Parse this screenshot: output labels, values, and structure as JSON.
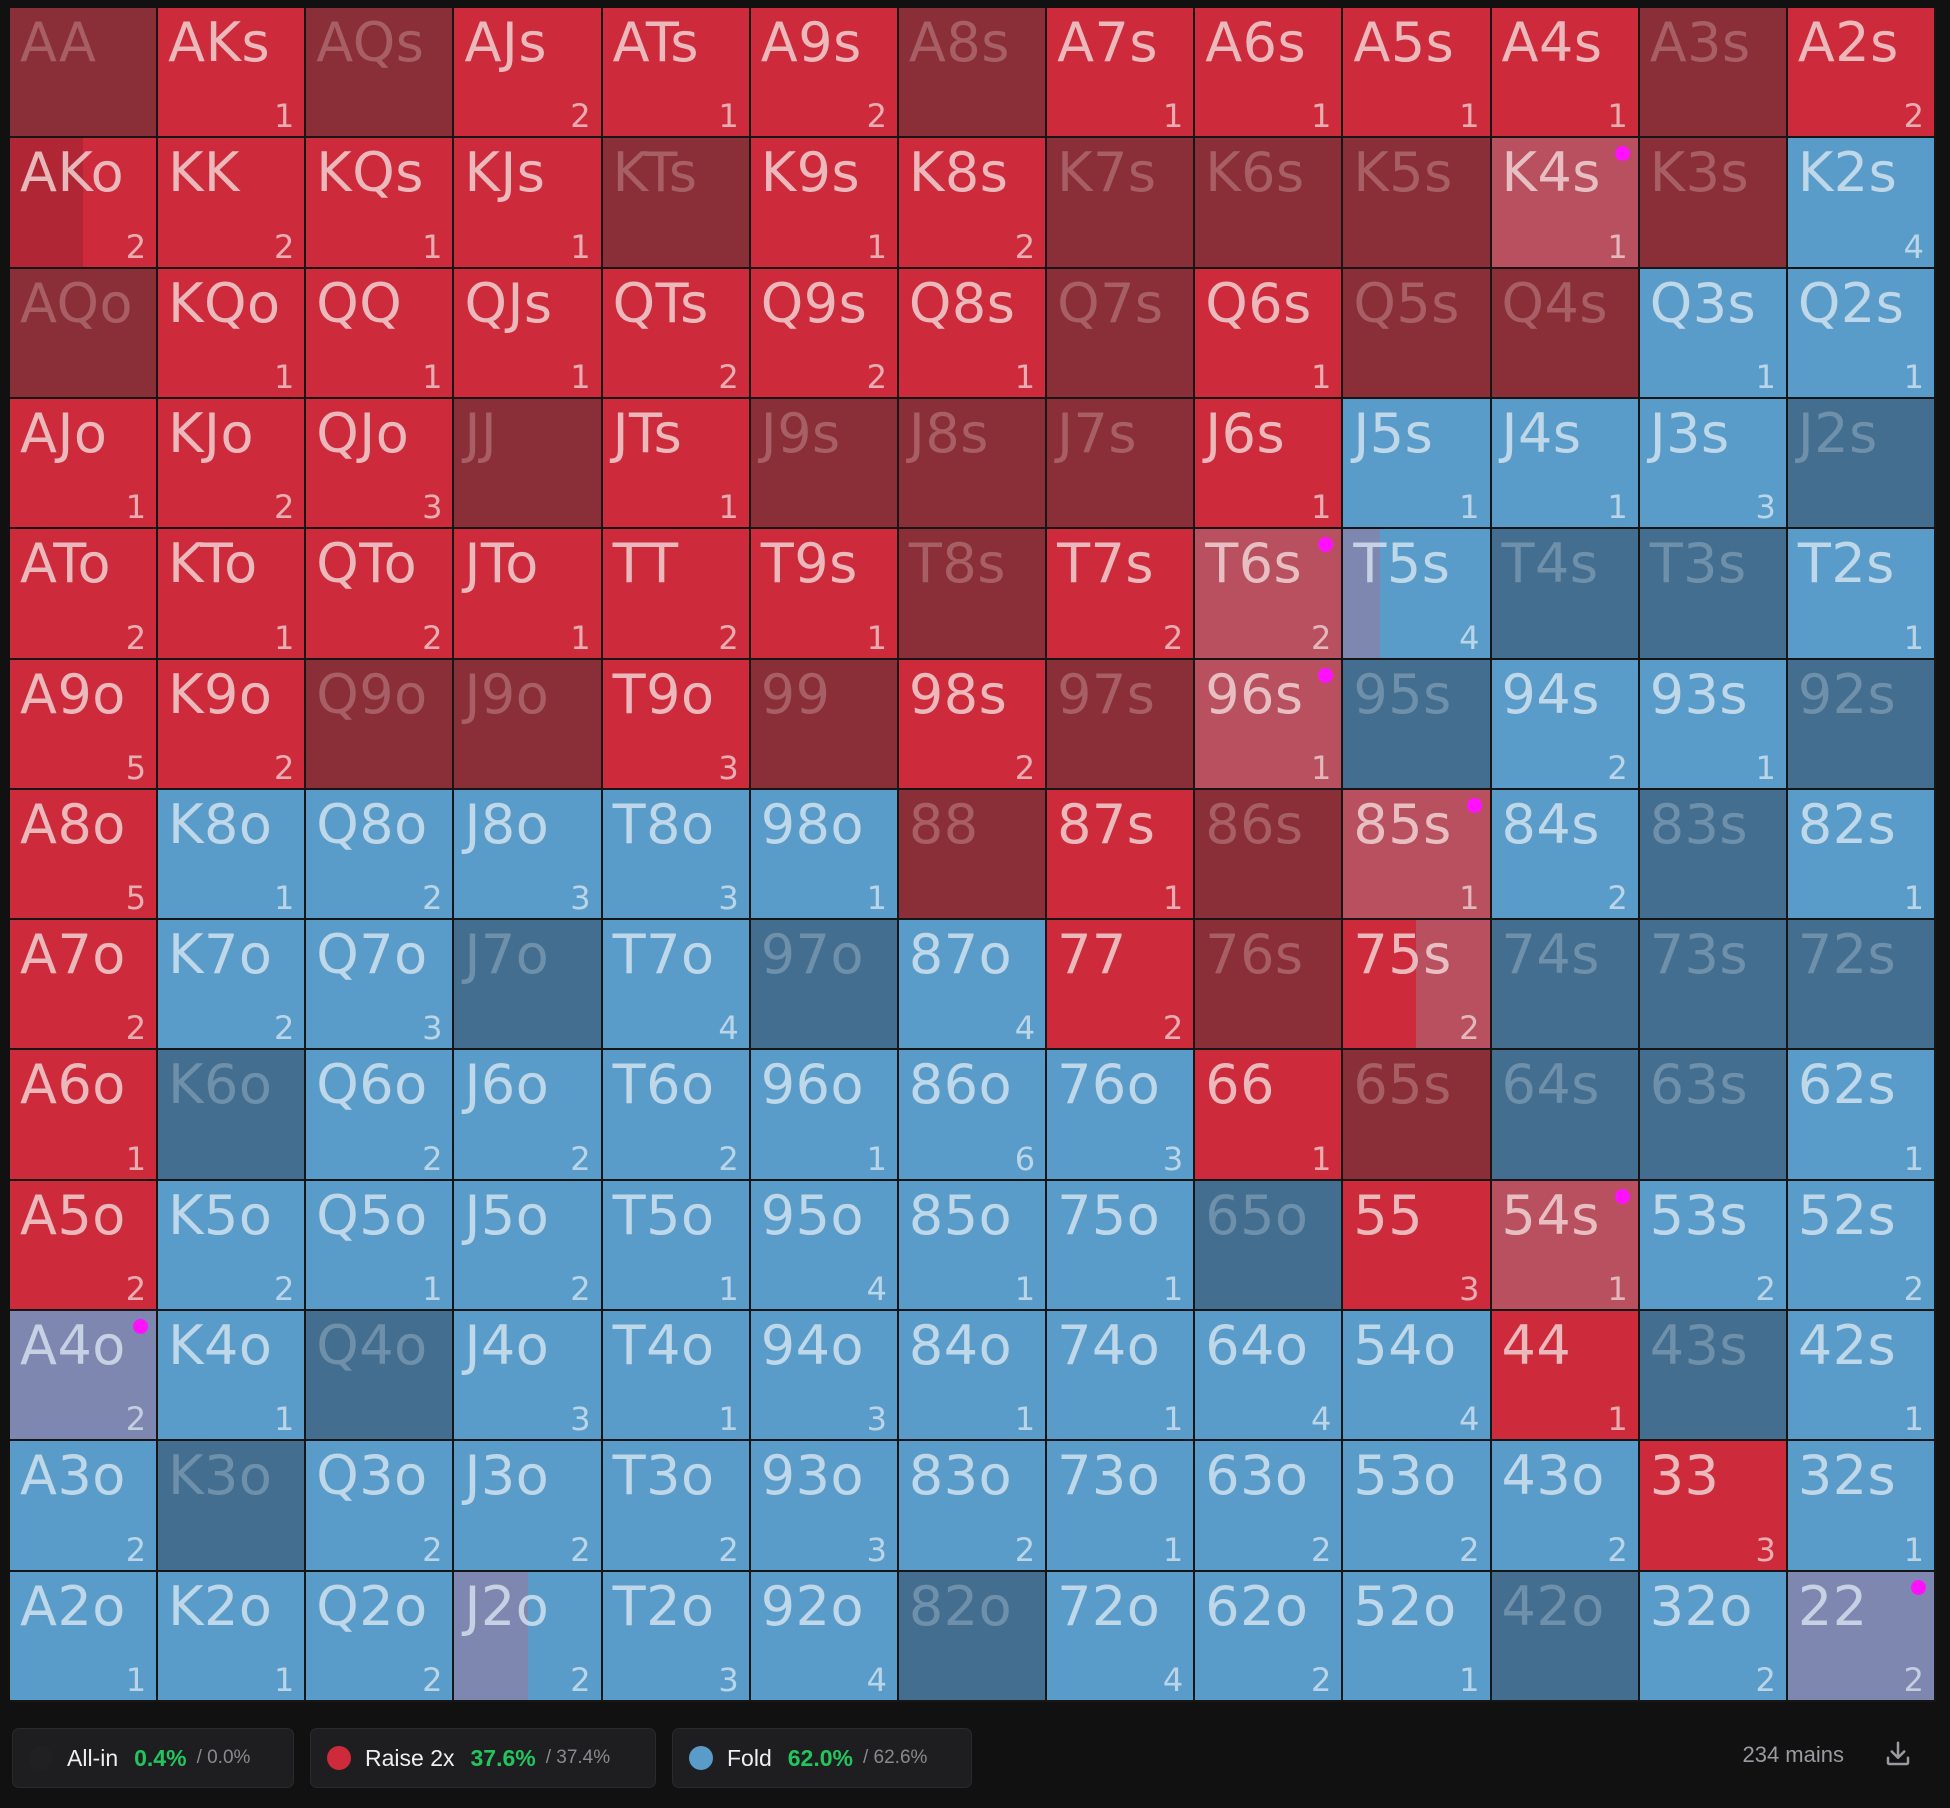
{
  "colors": {
    "raise": "#cd2b3b",
    "raise_dim": "#a8343d",
    "fold": "#5a9cc9",
    "fold_dim": "#4f84ac",
    "mixed_tint": "#b9505f",
    "mixed_tint_blue": "#7d87b0",
    "allin": "#202022",
    "marker": "#ff10ff",
    "percent_green": "#22c55e"
  },
  "grid": {
    "rows": [
      [
        {
          "h": "AA",
          "n": "",
          "a": "raise",
          "d": true
        },
        {
          "h": "AKs",
          "n": "1",
          "a": "raise"
        },
        {
          "h": "AQs",
          "n": "",
          "a": "raise",
          "d": true
        },
        {
          "h": "AJs",
          "n": "2",
          "a": "raise"
        },
        {
          "h": "ATs",
          "n": "1",
          "a": "raise"
        },
        {
          "h": "A9s",
          "n": "2",
          "a": "raise"
        },
        {
          "h": "A8s",
          "n": "",
          "a": "raise",
          "d": true
        },
        {
          "h": "A7s",
          "n": "1",
          "a": "raise"
        },
        {
          "h": "A6s",
          "n": "1",
          "a": "raise"
        },
        {
          "h": "A5s",
          "n": "1",
          "a": "raise"
        },
        {
          "h": "A4s",
          "n": "1",
          "a": "raise"
        },
        {
          "h": "A3s",
          "n": "",
          "a": "raise",
          "d": true
        },
        {
          "h": "A2s",
          "n": "2",
          "a": "raise"
        }
      ],
      [
        {
          "h": "AKo",
          "n": "2",
          "a": "raise",
          "mix": 0.5
        },
        {
          "h": "KK",
          "n": "2",
          "a": "raise"
        },
        {
          "h": "KQs",
          "n": "1",
          "a": "raise"
        },
        {
          "h": "KJs",
          "n": "1",
          "a": "raise"
        },
        {
          "h": "KTs",
          "n": "",
          "a": "raise",
          "d": true
        },
        {
          "h": "K9s",
          "n": "1",
          "a": "raise"
        },
        {
          "h": "K8s",
          "n": "2",
          "a": "raise"
        },
        {
          "h": "K7s",
          "n": "",
          "a": "raise",
          "d": true
        },
        {
          "h": "K6s",
          "n": "",
          "a": "raise",
          "d": true
        },
        {
          "h": "K5s",
          "n": "",
          "a": "raise",
          "d": true
        },
        {
          "h": "K4s",
          "n": "1",
          "a": "mixed",
          "m": true
        },
        {
          "h": "K3s",
          "n": "",
          "a": "raise",
          "d": true
        },
        {
          "h": "K2s",
          "n": "4",
          "a": "fold"
        }
      ],
      [
        {
          "h": "AQo",
          "n": "",
          "a": "raise",
          "d": true
        },
        {
          "h": "KQo",
          "n": "1",
          "a": "raise"
        },
        {
          "h": "QQ",
          "n": "1",
          "a": "raise"
        },
        {
          "h": "QJs",
          "n": "1",
          "a": "raise"
        },
        {
          "h": "QTs",
          "n": "2",
          "a": "raise"
        },
        {
          "h": "Q9s",
          "n": "2",
          "a": "raise"
        },
        {
          "h": "Q8s",
          "n": "1",
          "a": "raise"
        },
        {
          "h": "Q7s",
          "n": "",
          "a": "raise",
          "d": true
        },
        {
          "h": "Q6s",
          "n": "1",
          "a": "raise"
        },
        {
          "h": "Q5s",
          "n": "",
          "a": "raise",
          "d": true
        },
        {
          "h": "Q4s",
          "n": "",
          "a": "raise",
          "d": true
        },
        {
          "h": "Q3s",
          "n": "1",
          "a": "fold"
        },
        {
          "h": "Q2s",
          "n": "1",
          "a": "fold"
        }
      ],
      [
        {
          "h": "AJo",
          "n": "1",
          "a": "raise"
        },
        {
          "h": "KJo",
          "n": "2",
          "a": "raise"
        },
        {
          "h": "QJo",
          "n": "3",
          "a": "raise"
        },
        {
          "h": "JJ",
          "n": "",
          "a": "raise",
          "d": true
        },
        {
          "h": "JTs",
          "n": "1",
          "a": "raise"
        },
        {
          "h": "J9s",
          "n": "",
          "a": "raise",
          "d": true
        },
        {
          "h": "J8s",
          "n": "",
          "a": "raise",
          "d": true
        },
        {
          "h": "J7s",
          "n": "",
          "a": "raise",
          "d": true
        },
        {
          "h": "J6s",
          "n": "1",
          "a": "raise"
        },
        {
          "h": "J5s",
          "n": "1",
          "a": "fold"
        },
        {
          "h": "J4s",
          "n": "1",
          "a": "fold"
        },
        {
          "h": "J3s",
          "n": "3",
          "a": "fold"
        },
        {
          "h": "J2s",
          "n": "",
          "a": "fold",
          "d": true
        }
      ],
      [
        {
          "h": "ATo",
          "n": "2",
          "a": "raise"
        },
        {
          "h": "KTo",
          "n": "1",
          "a": "raise"
        },
        {
          "h": "QTo",
          "n": "2",
          "a": "raise"
        },
        {
          "h": "JTo",
          "n": "1",
          "a": "raise"
        },
        {
          "h": "TT",
          "n": "2",
          "a": "raise"
        },
        {
          "h": "T9s",
          "n": "1",
          "a": "raise"
        },
        {
          "h": "T8s",
          "n": "",
          "a": "raise",
          "d": true
        },
        {
          "h": "T7s",
          "n": "2",
          "a": "raise"
        },
        {
          "h": "T6s",
          "n": "2",
          "a": "mixed",
          "m": true
        },
        {
          "h": "T5s",
          "n": "4",
          "a": "fold",
          "mixb": 0.25
        },
        {
          "h": "T4s",
          "n": "",
          "a": "fold",
          "d": true
        },
        {
          "h": "T3s",
          "n": "",
          "a": "fold",
          "d": true
        },
        {
          "h": "T2s",
          "n": "1",
          "a": "fold"
        }
      ],
      [
        {
          "h": "A9o",
          "n": "5",
          "a": "raise"
        },
        {
          "h": "K9o",
          "n": "2",
          "a": "raise"
        },
        {
          "h": "Q9o",
          "n": "",
          "a": "raise",
          "d": true
        },
        {
          "h": "J9o",
          "n": "",
          "a": "raise",
          "d": true
        },
        {
          "h": "T9o",
          "n": "3",
          "a": "raise"
        },
        {
          "h": "99",
          "n": "",
          "a": "raise",
          "d": true
        },
        {
          "h": "98s",
          "n": "2",
          "a": "raise"
        },
        {
          "h": "97s",
          "n": "",
          "a": "raise",
          "d": true
        },
        {
          "h": "96s",
          "n": "1",
          "a": "mixed",
          "m": true
        },
        {
          "h": "95s",
          "n": "",
          "a": "fold",
          "d": true
        },
        {
          "h": "94s",
          "n": "2",
          "a": "fold"
        },
        {
          "h": "93s",
          "n": "1",
          "a": "fold"
        },
        {
          "h": "92s",
          "n": "",
          "a": "fold",
          "d": true
        }
      ],
      [
        {
          "h": "A8o",
          "n": "5",
          "a": "raise"
        },
        {
          "h": "K8o",
          "n": "1",
          "a": "fold"
        },
        {
          "h": "Q8o",
          "n": "2",
          "a": "fold"
        },
        {
          "h": "J8o",
          "n": "3",
          "a": "fold"
        },
        {
          "h": "T8o",
          "n": "3",
          "a": "fold"
        },
        {
          "h": "98o",
          "n": "1",
          "a": "fold"
        },
        {
          "h": "88",
          "n": "",
          "a": "raise",
          "d": true
        },
        {
          "h": "87s",
          "n": "1",
          "a": "raise"
        },
        {
          "h": "86s",
          "n": "",
          "a": "raise",
          "d": true
        },
        {
          "h": "85s",
          "n": "1",
          "a": "mixed",
          "m": true
        },
        {
          "h": "84s",
          "n": "2",
          "a": "fold"
        },
        {
          "h": "83s",
          "n": "",
          "a": "fold",
          "d": true
        },
        {
          "h": "82s",
          "n": "1",
          "a": "fold"
        }
      ],
      [
        {
          "h": "A7o",
          "n": "2",
          "a": "raise"
        },
        {
          "h": "K7o",
          "n": "2",
          "a": "fold"
        },
        {
          "h": "Q7o",
          "n": "3",
          "a": "fold"
        },
        {
          "h": "J7o",
          "n": "",
          "a": "fold",
          "d": true
        },
        {
          "h": "T7o",
          "n": "4",
          "a": "fold"
        },
        {
          "h": "97o",
          "n": "",
          "a": "fold",
          "d": true
        },
        {
          "h": "87o",
          "n": "4",
          "a": "fold"
        },
        {
          "h": "77",
          "n": "2",
          "a": "raise"
        },
        {
          "h": "76s",
          "n": "",
          "a": "raise",
          "d": true
        },
        {
          "h": "75s",
          "n": "2",
          "a": "mixed",
          "mixr": 0.5
        },
        {
          "h": "74s",
          "n": "",
          "a": "fold",
          "d": true
        },
        {
          "h": "73s",
          "n": "",
          "a": "fold",
          "d": true
        },
        {
          "h": "72s",
          "n": "",
          "a": "fold",
          "d": true
        }
      ],
      [
        {
          "h": "A6o",
          "n": "1",
          "a": "raise"
        },
        {
          "h": "K6o",
          "n": "",
          "a": "fold",
          "d": true
        },
        {
          "h": "Q6o",
          "n": "2",
          "a": "fold"
        },
        {
          "h": "J6o",
          "n": "2",
          "a": "fold"
        },
        {
          "h": "T6o",
          "n": "2",
          "a": "fold"
        },
        {
          "h": "96o",
          "n": "1",
          "a": "fold"
        },
        {
          "h": "86o",
          "n": "6",
          "a": "fold"
        },
        {
          "h": "76o",
          "n": "3",
          "a": "fold"
        },
        {
          "h": "66",
          "n": "1",
          "a": "raise"
        },
        {
          "h": "65s",
          "n": "",
          "a": "raise",
          "d": true
        },
        {
          "h": "64s",
          "n": "",
          "a": "fold",
          "d": true
        },
        {
          "h": "63s",
          "n": "",
          "a": "fold",
          "d": true
        },
        {
          "h": "62s",
          "n": "1",
          "a": "fold"
        }
      ],
      [
        {
          "h": "A5o",
          "n": "2",
          "a": "raise"
        },
        {
          "h": "K5o",
          "n": "2",
          "a": "fold"
        },
        {
          "h": "Q5o",
          "n": "1",
          "a": "fold"
        },
        {
          "h": "J5o",
          "n": "2",
          "a": "fold"
        },
        {
          "h": "T5o",
          "n": "1",
          "a": "fold"
        },
        {
          "h": "95o",
          "n": "4",
          "a": "fold"
        },
        {
          "h": "85o",
          "n": "1",
          "a": "fold"
        },
        {
          "h": "75o",
          "n": "1",
          "a": "fold"
        },
        {
          "h": "65o",
          "n": "",
          "a": "fold",
          "d": true
        },
        {
          "h": "55",
          "n": "3",
          "a": "raise"
        },
        {
          "h": "54s",
          "n": "1",
          "a": "mixed",
          "m": true
        },
        {
          "h": "53s",
          "n": "2",
          "a": "fold"
        },
        {
          "h": "52s",
          "n": "2",
          "a": "fold"
        }
      ],
      [
        {
          "h": "A4o",
          "n": "2",
          "a": "mixedblue",
          "m": true
        },
        {
          "h": "K4o",
          "n": "1",
          "a": "fold"
        },
        {
          "h": "Q4o",
          "n": "",
          "a": "fold",
          "d": true
        },
        {
          "h": "J4o",
          "n": "3",
          "a": "fold"
        },
        {
          "h": "T4o",
          "n": "1",
          "a": "fold"
        },
        {
          "h": "94o",
          "n": "3",
          "a": "fold"
        },
        {
          "h": "84o",
          "n": "1",
          "a": "fold"
        },
        {
          "h": "74o",
          "n": "1",
          "a": "fold"
        },
        {
          "h": "64o",
          "n": "4",
          "a": "fold"
        },
        {
          "h": "54o",
          "n": "4",
          "a": "fold"
        },
        {
          "h": "44",
          "n": "1",
          "a": "raise"
        },
        {
          "h": "43s",
          "n": "",
          "a": "fold",
          "d": true
        },
        {
          "h": "42s",
          "n": "1",
          "a": "fold"
        }
      ],
      [
        {
          "h": "A3o",
          "n": "2",
          "a": "fold"
        },
        {
          "h": "K3o",
          "n": "",
          "a": "fold",
          "d": true
        },
        {
          "h": "Q3o",
          "n": "2",
          "a": "fold"
        },
        {
          "h": "J3o",
          "n": "2",
          "a": "fold"
        },
        {
          "h": "T3o",
          "n": "2",
          "a": "fold"
        },
        {
          "h": "93o",
          "n": "3",
          "a": "fold"
        },
        {
          "h": "83o",
          "n": "2",
          "a": "fold"
        },
        {
          "h": "73o",
          "n": "1",
          "a": "fold"
        },
        {
          "h": "63o",
          "n": "2",
          "a": "fold"
        },
        {
          "h": "53o",
          "n": "2",
          "a": "fold"
        },
        {
          "h": "43o",
          "n": "2",
          "a": "fold"
        },
        {
          "h": "33",
          "n": "3",
          "a": "raise"
        },
        {
          "h": "32s",
          "n": "1",
          "a": "fold"
        }
      ],
      [
        {
          "h": "A2o",
          "n": "1",
          "a": "fold"
        },
        {
          "h": "K2o",
          "n": "1",
          "a": "fold"
        },
        {
          "h": "Q2o",
          "n": "2",
          "a": "fold"
        },
        {
          "h": "J2o",
          "n": "2",
          "a": "fold",
          "mixb": 0.5
        },
        {
          "h": "T2o",
          "n": "3",
          "a": "fold"
        },
        {
          "h": "92o",
          "n": "4",
          "a": "fold"
        },
        {
          "h": "82o",
          "n": "",
          "a": "fold",
          "d": true
        },
        {
          "h": "72o",
          "n": "4",
          "a": "fold"
        },
        {
          "h": "62o",
          "n": "2",
          "a": "fold"
        },
        {
          "h": "52o",
          "n": "1",
          "a": "fold"
        },
        {
          "h": "42o",
          "n": "",
          "a": "fold",
          "d": true
        },
        {
          "h": "32o",
          "n": "2",
          "a": "fold"
        },
        {
          "h": "22",
          "n": "2",
          "a": "mixedblue",
          "m": true
        }
      ]
    ]
  },
  "legend": {
    "allin": {
      "label": "All-in",
      "pct": "0.4%",
      "sub": "/ 0.0%"
    },
    "raise": {
      "label": "Raise 2x",
      "pct": "37.6%",
      "sub": "/ 37.4%"
    },
    "fold": {
      "label": "Fold",
      "pct": "62.0%",
      "sub": "/ 62.6%"
    }
  },
  "footer": {
    "count_label": "234 mains",
    "download_icon": "download-icon"
  }
}
